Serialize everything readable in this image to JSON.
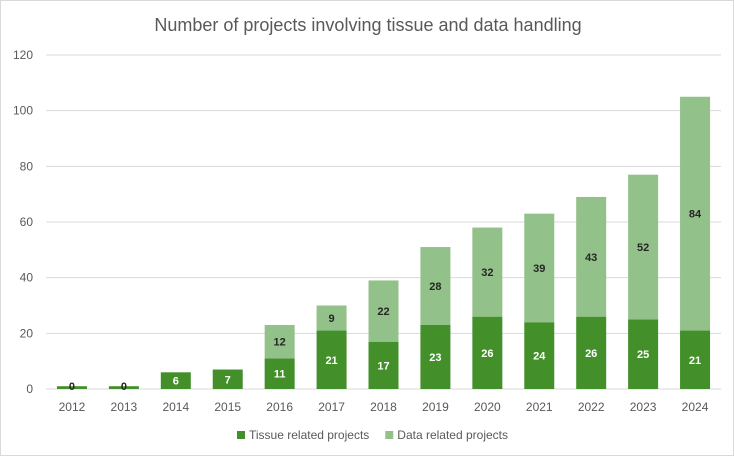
{
  "chart_data": {
    "type": "bar",
    "stacked": true,
    "title": "Number of projects involving tissue and data handling",
    "xlabel": "",
    "ylabel": "",
    "ylim": [
      0,
      120
    ],
    "yticks": [
      0,
      20,
      40,
      60,
      80,
      100,
      120
    ],
    "grid": true,
    "legend_position": "bottom",
    "categories": [
      "2012",
      "2013",
      "2014",
      "2015",
      "2016",
      "2017",
      "2018",
      "2019",
      "2020",
      "2021",
      "2022",
      "2023",
      "2024"
    ],
    "series": [
      {
        "name": "Tissue related projects",
        "color": "#43902a",
        "label_color": "#ffffff",
        "values": [
          1,
          1,
          6,
          7,
          11,
          21,
          17,
          23,
          26,
          24,
          26,
          25,
          21
        ],
        "labels": [
          "",
          "",
          "6",
          "7",
          "11",
          "21",
          "17",
          "23",
          "26",
          "24",
          "26",
          "25",
          "21"
        ]
      },
      {
        "name": "Data related projects",
        "color": "#93c18a",
        "label_color": "#262626",
        "values": [
          0,
          0,
          0,
          0,
          12,
          9,
          22,
          28,
          32,
          39,
          43,
          52,
          84
        ],
        "labels": [
          "0",
          "0",
          "",
          "",
          "12",
          "9",
          "22",
          "28",
          "32",
          "39",
          "43",
          "52",
          "84"
        ]
      }
    ]
  }
}
